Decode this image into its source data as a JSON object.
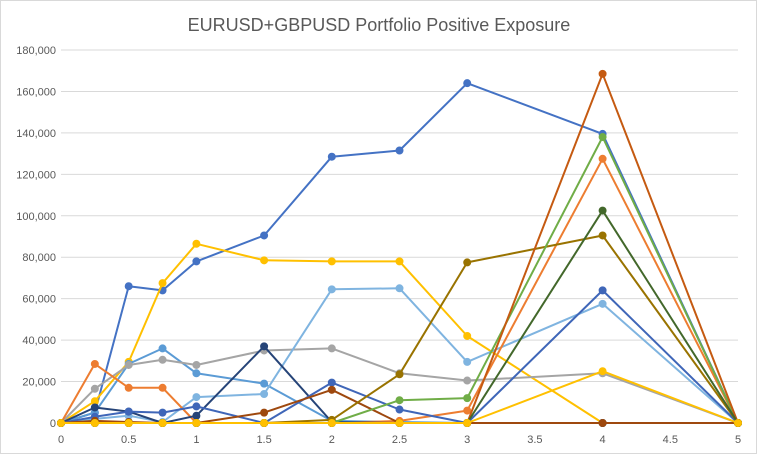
{
  "chart_data": {
    "type": "scatter",
    "title": "EURUSD+GBPUSD Portfolio Positive Exposure",
    "xlabel": "",
    "ylabel": "",
    "xlim": [
      0,
      5
    ],
    "ylim": [
      0,
      180000
    ],
    "x_ticks": [
      0,
      0.5,
      1,
      1.5,
      2,
      2.5,
      3,
      3.5,
      4,
      4.5,
      5
    ],
    "x_tick_labels": [
      "0",
      "0.5",
      "1",
      "1.5",
      "2",
      "2.5",
      "3",
      "3.5",
      "4",
      "4.5",
      "5"
    ],
    "y_ticks": [
      0,
      20000,
      40000,
      60000,
      80000,
      100000,
      120000,
      140000,
      160000,
      180000
    ],
    "y_tick_labels": [
      "0",
      "20,000",
      "40,000",
      "60,000",
      "80,000",
      "100,000",
      "120,000",
      "140,000",
      "160,000",
      "180,000"
    ],
    "grid": true,
    "legend": "none",
    "series": [
      {
        "color": "#4472c4",
        "points": [
          [
            0,
            0
          ],
          [
            0.25,
            5000
          ],
          [
            0.5,
            66000
          ],
          [
            0.75,
            64000
          ],
          [
            1,
            78000
          ],
          [
            1.5,
            90500
          ],
          [
            2,
            128500
          ],
          [
            2.5,
            131500
          ],
          [
            3,
            164000
          ],
          [
            4,
            139500
          ],
          [
            5,
            0
          ]
        ]
      },
      {
        "color": "#ffc000",
        "points": [
          [
            0,
            0
          ],
          [
            0.25,
            10500
          ],
          [
            0.5,
            29500
          ],
          [
            0.75,
            67500
          ],
          [
            1,
            86500
          ],
          [
            1.5,
            78500
          ],
          [
            2,
            78000
          ],
          [
            2.5,
            78000
          ],
          [
            3,
            42000
          ],
          [
            4,
            0
          ],
          [
            5,
            0
          ]
        ]
      },
      {
        "color": "#5b9bd5",
        "points": [
          [
            0,
            0
          ],
          [
            0.25,
            5000
          ],
          [
            0.5,
            28500
          ],
          [
            0.75,
            36000
          ],
          [
            1,
            24000
          ],
          [
            1.5,
            19000
          ],
          [
            2,
            1000
          ],
          [
            2.5,
            500
          ],
          [
            3,
            0
          ],
          [
            4,
            0
          ],
          [
            5,
            0
          ]
        ]
      },
      {
        "color": "#a5a5a5",
        "points": [
          [
            0,
            0
          ],
          [
            0.25,
            16500
          ],
          [
            0.5,
            28000
          ],
          [
            0.75,
            30500
          ],
          [
            1,
            28000
          ],
          [
            1.5,
            35000
          ],
          [
            2,
            36000
          ],
          [
            2.5,
            24000
          ],
          [
            3,
            20500
          ],
          [
            4,
            24000
          ],
          [
            5,
            0
          ]
        ]
      },
      {
        "color": "#7fb4e0",
        "points": [
          [
            0,
            0
          ],
          [
            0.25,
            2000
          ],
          [
            0.5,
            3500
          ],
          [
            0.75,
            500
          ],
          [
            1,
            12500
          ],
          [
            1.5,
            14000
          ],
          [
            2,
            64500
          ],
          [
            2.5,
            65000
          ],
          [
            3,
            29500
          ],
          [
            4,
            57500
          ],
          [
            5,
            0
          ]
        ]
      },
      {
        "color": "#ed7d31",
        "points": [
          [
            0,
            0
          ],
          [
            0.25,
            28500
          ],
          [
            0.5,
            17000
          ],
          [
            0.75,
            17000
          ],
          [
            1,
            0
          ],
          [
            1.5,
            0
          ],
          [
            2,
            0
          ],
          [
            2.5,
            1000
          ],
          [
            3,
            6000
          ],
          [
            4,
            127500
          ],
          [
            5,
            0
          ]
        ]
      },
      {
        "color": "#264478",
        "points": [
          [
            0,
            0
          ],
          [
            0.25,
            7500
          ],
          [
            0.5,
            5500
          ],
          [
            0.75,
            0
          ],
          [
            1,
            3500
          ],
          [
            1.5,
            37000
          ],
          [
            2,
            500
          ],
          [
            2.5,
            0
          ],
          [
            3,
            0
          ],
          [
            4,
            0
          ],
          [
            5,
            0
          ]
        ]
      },
      {
        "color": "#3f66b8",
        "points": [
          [
            0,
            0
          ],
          [
            0.25,
            3000
          ],
          [
            0.5,
            5500
          ],
          [
            0.75,
            5000
          ],
          [
            1,
            8000
          ],
          [
            1.5,
            0
          ],
          [
            2,
            19500
          ],
          [
            2.5,
            6500
          ],
          [
            3,
            0
          ],
          [
            4,
            64000
          ],
          [
            5,
            0
          ]
        ]
      },
      {
        "color": "#9e480e",
        "points": [
          [
            0,
            0
          ],
          [
            0.25,
            1000
          ],
          [
            0.5,
            500
          ],
          [
            0.75,
            0
          ],
          [
            1,
            0
          ],
          [
            1.5,
            5000
          ],
          [
            2,
            16000
          ],
          [
            2.5,
            0
          ],
          [
            3,
            0
          ],
          [
            4,
            0
          ],
          [
            5,
            0
          ]
        ]
      },
      {
        "color": "#997300",
        "points": [
          [
            0,
            0
          ],
          [
            0.25,
            0
          ],
          [
            0.5,
            0
          ],
          [
            0.75,
            0
          ],
          [
            1,
            0
          ],
          [
            1.5,
            0
          ],
          [
            2,
            1500
          ],
          [
            2.5,
            23500
          ],
          [
            3,
            77500
          ],
          [
            4,
            90500
          ],
          [
            5,
            0
          ]
        ]
      },
      {
        "color": "#70ad47",
        "points": [
          [
            0,
            0
          ],
          [
            0.25,
            0
          ],
          [
            0.5,
            0
          ],
          [
            0.75,
            0
          ],
          [
            1,
            0
          ],
          [
            1.5,
            0
          ],
          [
            2,
            0
          ],
          [
            2.5,
            11000
          ],
          [
            3,
            12000
          ],
          [
            4,
            138000
          ],
          [
            5,
            0
          ]
        ]
      },
      {
        "color": "#c55a11",
        "points": [
          [
            0,
            0
          ],
          [
            0.25,
            0
          ],
          [
            0.5,
            0
          ],
          [
            0.75,
            0
          ],
          [
            1,
            0
          ],
          [
            1.5,
            0
          ],
          [
            2,
            0
          ],
          [
            2.5,
            0
          ],
          [
            3,
            0
          ],
          [
            4,
            168500
          ],
          [
            5,
            0
          ]
        ]
      },
      {
        "color": "#43682b",
        "points": [
          [
            0,
            0
          ],
          [
            0.25,
            0
          ],
          [
            0.5,
            0
          ],
          [
            0.75,
            0
          ],
          [
            1,
            0
          ],
          [
            1.5,
            0
          ],
          [
            2,
            0
          ],
          [
            2.5,
            0
          ],
          [
            3,
            0
          ],
          [
            4,
            102500
          ],
          [
            5,
            0
          ]
        ]
      },
      {
        "color": "#ffc000",
        "points": [
          [
            0,
            0
          ],
          [
            0.25,
            0
          ],
          [
            0.5,
            0
          ],
          [
            0.75,
            0
          ],
          [
            1,
            0
          ],
          [
            1.5,
            0
          ],
          [
            2,
            0
          ],
          [
            2.5,
            0
          ],
          [
            3,
            0
          ],
          [
            4,
            25000
          ],
          [
            5,
            0
          ]
        ]
      }
    ]
  }
}
